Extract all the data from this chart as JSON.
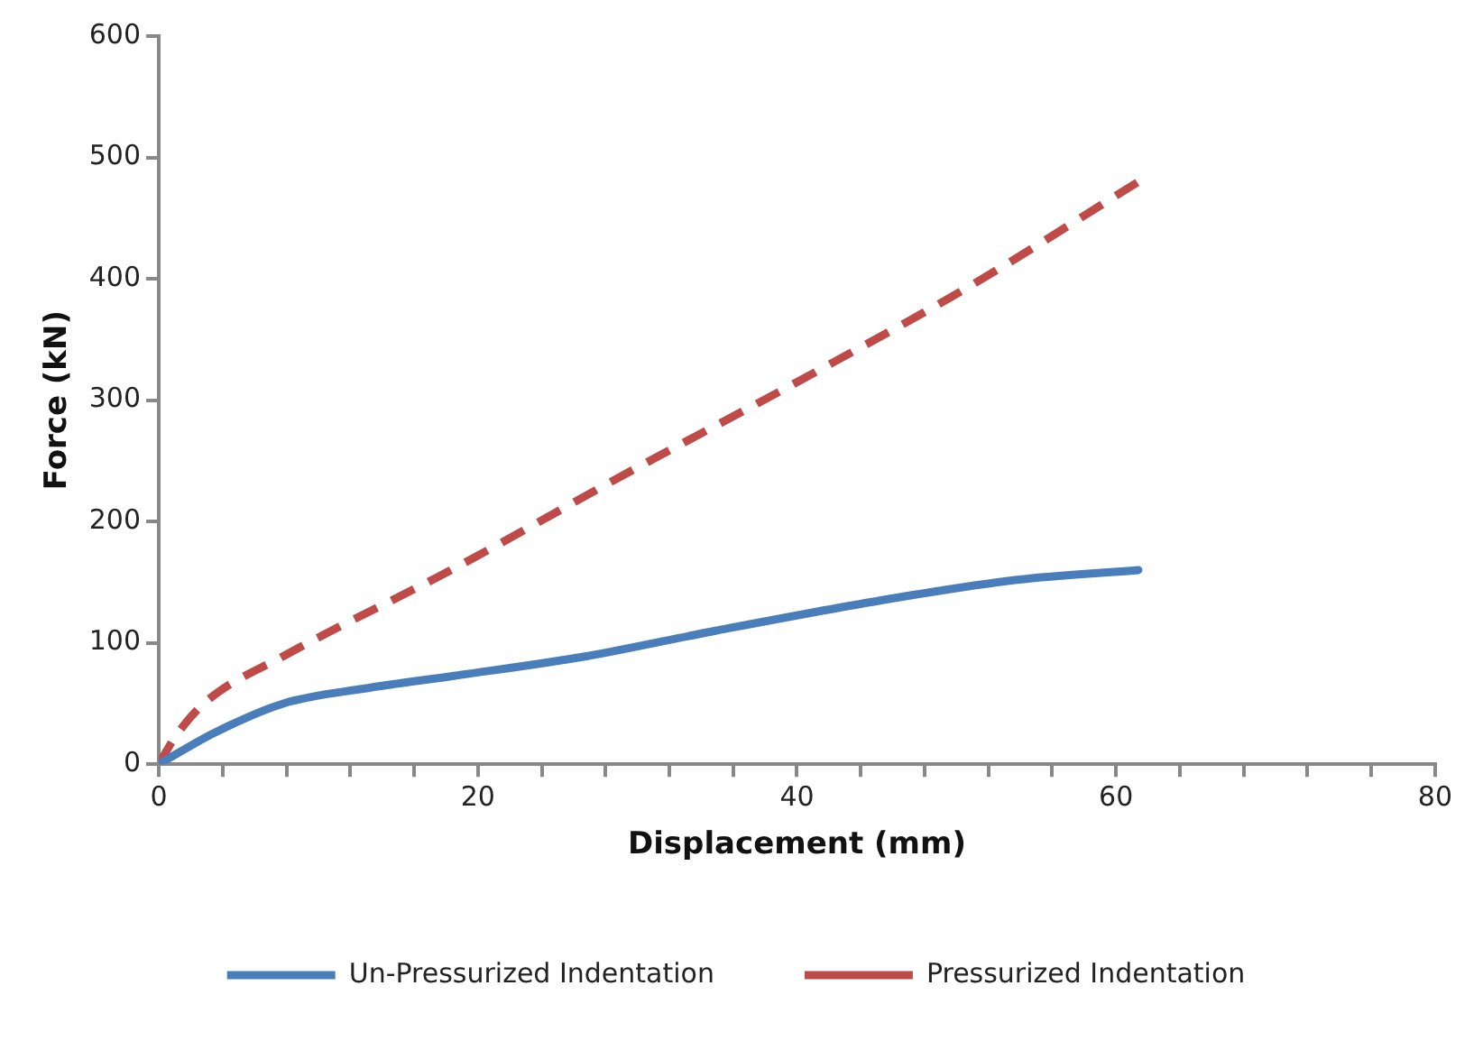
{
  "chart_data": {
    "type": "line",
    "xlabel": "Displacement (mm)",
    "ylabel": "Force (kN)",
    "xlim": [
      0,
      80
    ],
    "xticks": [
      0,
      {
        "value": 4,
        "label": null
      },
      {
        "value": 8,
        "label": null
      },
      {
        "value": 12,
        "label": null
      },
      {
        "value": 16,
        "label": null
      },
      20,
      {
        "value": 24,
        "label": null
      },
      {
        "value": 28,
        "label": null
      },
      {
        "value": 32,
        "label": null
      },
      {
        "value": 36,
        "label": null
      },
      40,
      {
        "value": 44,
        "label": null
      },
      {
        "value": 48,
        "label": null
      },
      {
        "value": 52,
        "label": null
      },
      {
        "value": 56,
        "label": null
      },
      60,
      {
        "value": 64,
        "label": null
      },
      {
        "value": 68,
        "label": null
      },
      {
        "value": 72,
        "label": null
      },
      {
        "value": 76,
        "label": null
      },
      80
    ],
    "ylim": [
      0,
      600
    ],
    "yticks": [
      0,
      100,
      200,
      300,
      400,
      500,
      600
    ],
    "grid": false,
    "legend": "bottom",
    "marker": "none",
    "series": [
      {
        "name": "Un-Pressurized Indentation",
        "color": "#4a7ebb",
        "line_style": "solid",
        "x": [
          0,
          3.5,
          7.8,
          13.2,
          18.6,
          26.8,
          34.9,
          45.7,
          53.8,
          61.4
        ],
        "values": [
          0,
          26,
          50,
          63,
          73,
          89,
          110,
          136,
          152,
          160
        ]
      },
      {
        "name": "Pressurized Indentation",
        "color": "#be4b48",
        "line_style": "dashed",
        "x": [
          0,
          1.1,
          3,
          7.8,
          18.6,
          29.5,
          40.3,
          51.1,
          61.4
        ],
        "values": [
          0,
          24,
          52,
          89,
          162,
          241,
          317,
          396,
          480
        ]
      }
    ]
  }
}
